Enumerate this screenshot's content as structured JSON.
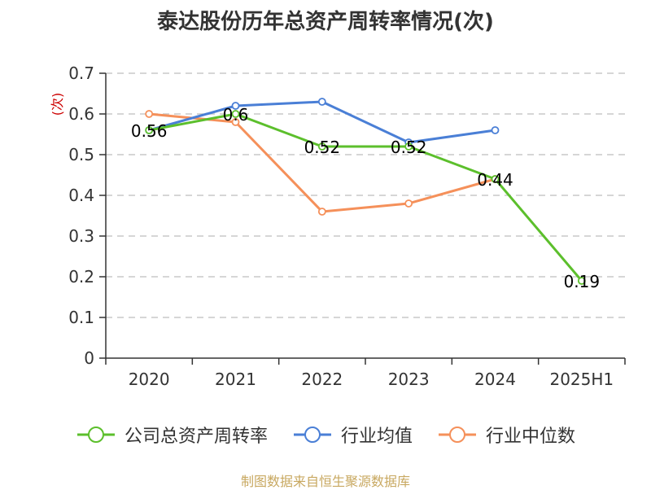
{
  "chart_data": {
    "type": "line",
    "title": "泰达股份历年总资产周转率情况(次)",
    "ylabel": "(次)",
    "ylim": [
      0,
      0.7
    ],
    "yticks": [
      "0",
      "0.1",
      "0.2",
      "0.3",
      "0.4",
      "0.5",
      "0.6",
      "0.7"
    ],
    "categories": [
      "2020",
      "2021",
      "2022",
      "2023",
      "2024",
      "2025H1"
    ],
    "grid": true,
    "legend_position": "bottom",
    "series": [
      {
        "name": "公司总资产周转率",
        "color": "#5cbf2c",
        "values": [
          0.56,
          0.6,
          0.52,
          0.52,
          0.44,
          0.19
        ],
        "labels": [
          "0.56",
          "0.6",
          "0.52",
          "0.52",
          "0.44",
          "0.19"
        ]
      },
      {
        "name": "行业均值",
        "color": "#4a7fd6",
        "values": [
          0.56,
          0.62,
          0.63,
          0.53,
          0.56,
          null
        ]
      },
      {
        "name": "行业中位数",
        "color": "#f5905a",
        "values": [
          0.6,
          0.58,
          0.36,
          0.38,
          0.44,
          null
        ]
      }
    ]
  },
  "source": "制图数据来自恒生聚源数据库"
}
